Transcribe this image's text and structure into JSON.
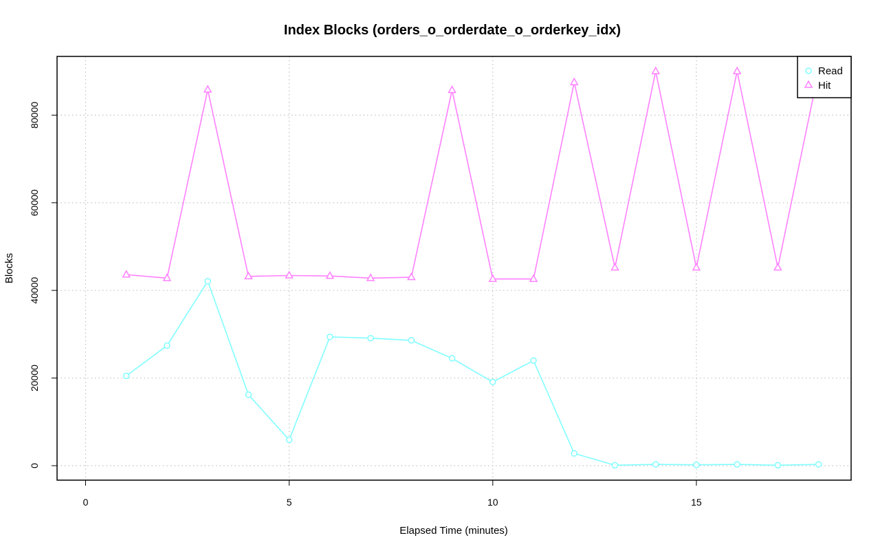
{
  "chart_data": {
    "type": "line",
    "title": "Index Blocks (orders_o_orderdate_o_orderkey_idx)",
    "xlabel": "Elapsed Time (minutes)",
    "ylabel": "Blocks",
    "xlim": [
      -0.7,
      18.8
    ],
    "ylim": [
      -3300,
      93400
    ],
    "x_ticks": [
      0,
      5,
      10,
      15
    ],
    "y_ticks": [
      0,
      20000,
      40000,
      60000,
      80000
    ],
    "grid": true,
    "legend_position": "top-right",
    "x": [
      1,
      2,
      3,
      4,
      5,
      6,
      7,
      8,
      9,
      10,
      11,
      12,
      13,
      14,
      15,
      16,
      17,
      18
    ],
    "series": [
      {
        "name": "Read",
        "color": "#80ffff",
        "marker": "circle",
        "values": [
          20500,
          27400,
          42100,
          16200,
          5900,
          29400,
          29100,
          28600,
          24500,
          19100,
          24000,
          2800,
          100,
          300,
          200,
          300,
          100,
          300
        ]
      },
      {
        "name": "Hit",
        "color": "#ff80ff",
        "marker": "triangle",
        "values": [
          43600,
          42800,
          85800,
          43200,
          43400,
          43300,
          42800,
          43000,
          85700,
          42600,
          42600,
          87500,
          45200,
          90000,
          45200,
          90000,
          45200,
          90000
        ]
      }
    ]
  }
}
